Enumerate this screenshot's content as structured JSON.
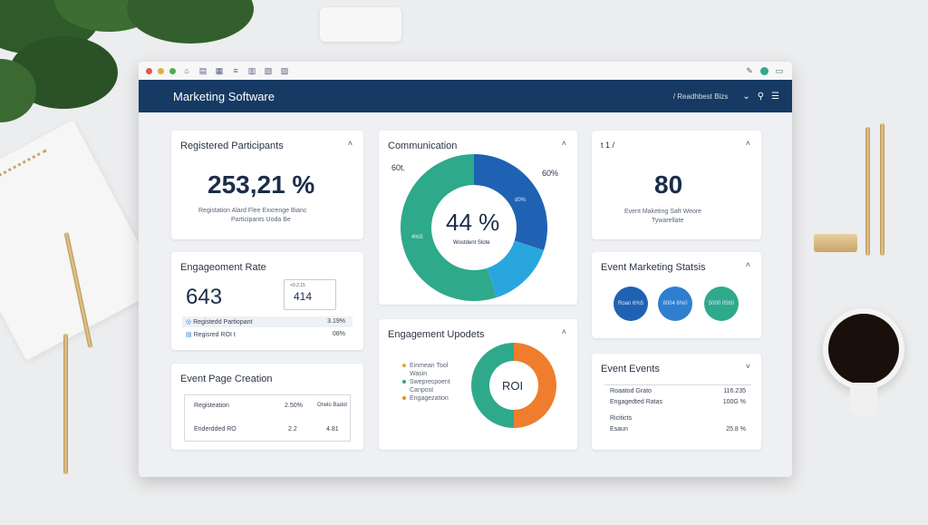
{
  "toolbar": {
    "dot_colors": [
      "#e0574f",
      "#e3b23c",
      "#4cae4f"
    ],
    "icons": [
      "home-icon",
      "file-icon",
      "chart-icon",
      "list-icon",
      "bars-icon",
      "table-icon",
      "grid-icon"
    ],
    "right_icons": [
      "edit-icon",
      "profile-icon",
      "window-icon"
    ]
  },
  "header": {
    "title": "Marketing Software",
    "account": "/ Readhbest Bizs",
    "chevron": "⌄",
    "search": "⚲",
    "menu": "☰"
  },
  "cards": {
    "registered": {
      "title": "Registered Participants",
      "value": "253,21 %",
      "caption_line1": "Registation Alard Flee Exxrenge Bianc",
      "caption_line2": "Participants Uoda Be"
    },
    "communication": {
      "title": "Communication",
      "label_left": "60t.",
      "label_right": "60%",
      "label_mid": "d0%",
      "label_bottom": "4%S",
      "center_value": "44 %",
      "center_caption": "Wostdent Slote"
    },
    "metric80": {
      "header_left": "t  1 /",
      "value": "80",
      "caption_line1": "Event Maketing Saft Weore",
      "caption_line2": "Tywarellate"
    },
    "engagement_rate": {
      "title": "Engageoment Rate",
      "value": "643",
      "box_value": "414",
      "box_label": "+0.2.15",
      "rows": [
        {
          "label": "Registedd Partiopant",
          "value": "3.19%"
        },
        {
          "label": "Regisred ROI t",
          "value": "08%"
        }
      ]
    },
    "stats": {
      "title": "Event Marketing Statsis",
      "bubbles": [
        "Roan 6%5",
        "8004 8%0",
        "5000 0560"
      ],
      "bubble_colors": [
        "#1f62b3",
        "#2f7fd0",
        "#2fa98b"
      ]
    },
    "engagement_updates": {
      "title": "Engagement Upodets",
      "center_label": "ROI",
      "legend": [
        {
          "label": "Einmean Tool",
          "color": "#f0a13a"
        },
        {
          "label": "Wasin",
          "color": "#ffffff"
        },
        {
          "label": "Sweprecpoent",
          "color": "#38a17a"
        },
        {
          "label": "Canpost",
          "color": "#ffffff"
        },
        {
          "label": "Engagezation",
          "color": "#f08a2c"
        }
      ],
      "slices": [
        {
          "name": "ROI orange",
          "value": 50,
          "color": "#ef7d2d"
        },
        {
          "name": "ROI teal",
          "value": 50,
          "color": "#2fa98b"
        }
      ]
    },
    "page_creation": {
      "title": "Event Page Creation",
      "rows": [
        {
          "c1": "Registeation",
          "c2": "2.50%",
          "c3": "Orwlo Badot"
        },
        {
          "c1": "Enderdded RO",
          "c2": "2.2",
          "c3": "4.81"
        }
      ]
    },
    "events": {
      "title": "Event Events",
      "rows": [
        {
          "label": "Roaatod Grato",
          "value": "116.235"
        },
        {
          "label": "Engagedted Ratas",
          "value": "100G %"
        },
        {
          "label": "Riciticts",
          "value": ""
        },
        {
          "label": "Esaun",
          "value": "25.8 %"
        }
      ]
    }
  },
  "donut_communication": [
    {
      "name": "dark-blue",
      "value": 30,
      "color": "#1f62b3"
    },
    {
      "name": "light-blue",
      "value": 15,
      "color": "#2aa6df"
    },
    {
      "name": "green",
      "value": 55,
      "color": "#2fa98b"
    }
  ]
}
